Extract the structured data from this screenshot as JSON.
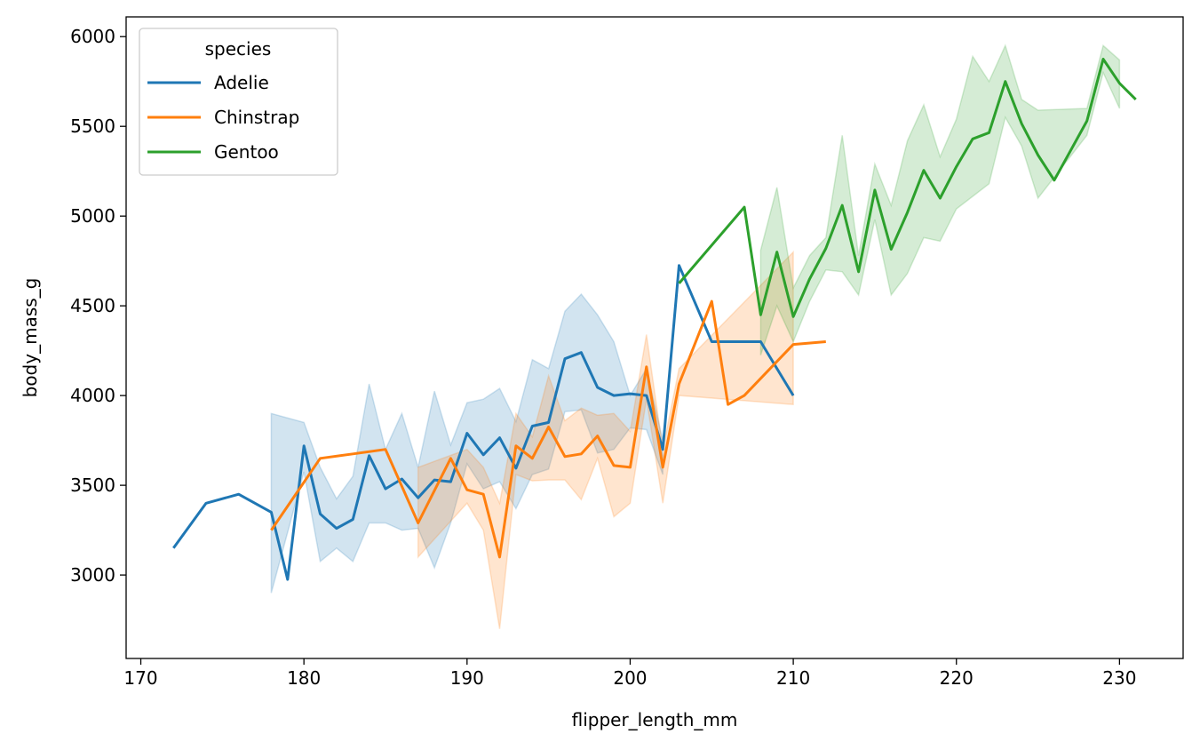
{
  "chart_data": {
    "type": "line",
    "xlabel": "flipper_length_mm",
    "ylabel": "body_mass_g",
    "xlim": [
      169.1,
      233.9
    ],
    "ylim": [
      2535,
      6110
    ],
    "xticks": [
      170,
      180,
      190,
      200,
      210,
      220,
      230
    ],
    "yticks": [
      3000,
      3500,
      4000,
      4500,
      5000,
      5500,
      6000
    ],
    "grid": false,
    "legend": {
      "title": "species",
      "placement": "top-left"
    },
    "series": [
      {
        "name": "Adelie",
        "color": "#1f77b4",
        "points": [
          [
            172,
            3150
          ],
          [
            174,
            3400
          ],
          [
            176,
            3450
          ],
          [
            178,
            3350
          ],
          [
            179,
            2975
          ],
          [
            180,
            3720
          ],
          [
            181,
            3340
          ],
          [
            182,
            3260
          ],
          [
            183,
            3310
          ],
          [
            184,
            3665
          ],
          [
            185,
            3480
          ],
          [
            186,
            3535
          ],
          [
            187,
            3430
          ],
          [
            188,
            3530
          ],
          [
            189,
            3520
          ],
          [
            190,
            3790
          ],
          [
            191,
            3670
          ],
          [
            192,
            3765
          ],
          [
            193,
            3595
          ],
          [
            194,
            3830
          ],
          [
            195,
            3850
          ],
          [
            196,
            4205
          ],
          [
            197,
            4240
          ],
          [
            198,
            4045
          ],
          [
            199,
            4000
          ],
          [
            200,
            4010
          ],
          [
            201,
            4000
          ],
          [
            202,
            3700
          ],
          [
            203,
            4725
          ],
          [
            205,
            4300
          ],
          [
            207,
            4300
          ],
          [
            208,
            4300
          ],
          [
            210,
            4000
          ]
        ],
        "band": [
          [
            178,
            2900,
            3900
          ],
          [
            180,
            3575,
            3850
          ],
          [
            181,
            3075,
            3600
          ],
          [
            182,
            3150,
            3425
          ],
          [
            183,
            3075,
            3550
          ],
          [
            184,
            3290,
            4065
          ],
          [
            185,
            3290,
            3700
          ],
          [
            186,
            3250,
            3900
          ],
          [
            187,
            3260,
            3600
          ],
          [
            188,
            3040,
            4025
          ],
          [
            189,
            3290,
            3725
          ],
          [
            190,
            3620,
            3960
          ],
          [
            191,
            3480,
            3980
          ],
          [
            192,
            3520,
            4040
          ],
          [
            193,
            3370,
            3855
          ],
          [
            194,
            3560,
            4200
          ],
          [
            195,
            3590,
            4150
          ],
          [
            196,
            3910,
            4470
          ],
          [
            197,
            3920,
            4565
          ],
          [
            198,
            3680,
            4450
          ],
          [
            199,
            3700,
            4300
          ],
          [
            200,
            3820,
            4000
          ],
          [
            201,
            3810,
            4150
          ],
          [
            202,
            3560,
            3750
          ]
        ]
      },
      {
        "name": "Chinstrap",
        "color": "#ff7f0e",
        "points": [
          [
            178,
            3250
          ],
          [
            181,
            3650
          ],
          [
            183,
            3675
          ],
          [
            185,
            3700
          ],
          [
            187,
            3290
          ],
          [
            189,
            3650
          ],
          [
            190,
            3475
          ],
          [
            191,
            3450
          ],
          [
            192,
            3100
          ],
          [
            193,
            3720
          ],
          [
            194,
            3650
          ],
          [
            195,
            3825
          ],
          [
            196,
            3660
          ],
          [
            197,
            3675
          ],
          [
            198,
            3775
          ],
          [
            199,
            3610
          ],
          [
            200,
            3600
          ],
          [
            201,
            4160
          ],
          [
            202,
            3600
          ],
          [
            203,
            4065
          ],
          [
            205,
            4525
          ],
          [
            206,
            3950
          ],
          [
            207,
            4000
          ],
          [
            210,
            4285
          ],
          [
            212,
            4300
          ]
        ],
        "band": [
          [
            187,
            3100,
            3600
          ],
          [
            190,
            3400,
            3700
          ],
          [
            191,
            3250,
            3600
          ],
          [
            192,
            2700,
            3400
          ],
          [
            193,
            3560,
            3900
          ],
          [
            194,
            3525,
            3770
          ],
          [
            195,
            3530,
            4110
          ],
          [
            196,
            3530,
            3860
          ],
          [
            197,
            3420,
            3930
          ],
          [
            198,
            3650,
            3890
          ],
          [
            199,
            3325,
            3900
          ],
          [
            200,
            3400,
            3800
          ],
          [
            201,
            3980,
            4340
          ],
          [
            202,
            3400,
            3700
          ],
          [
            203,
            4000,
            4150
          ],
          [
            210,
            3950,
            4800
          ]
        ]
      },
      {
        "name": "Gentoo",
        "color": "#2ca02c",
        "points": [
          [
            203,
            4625
          ],
          [
            207,
            5050
          ],
          [
            208,
            4450
          ],
          [
            209,
            4800
          ],
          [
            210,
            4440
          ],
          [
            211,
            4650
          ],
          [
            212,
            4820
          ],
          [
            213,
            5060
          ],
          [
            214,
            4690
          ],
          [
            215,
            5145
          ],
          [
            216,
            4815
          ],
          [
            217,
            5020
          ],
          [
            218,
            5255
          ],
          [
            219,
            5100
          ],
          [
            220,
            5275
          ],
          [
            221,
            5430
          ],
          [
            222,
            5465
          ],
          [
            223,
            5750
          ],
          [
            224,
            5515
          ],
          [
            225,
            5340
          ],
          [
            226,
            5200
          ],
          [
            228,
            5530
          ],
          [
            229,
            5875
          ],
          [
            230,
            5740
          ],
          [
            231,
            5650
          ]
        ],
        "band": [
          [
            208,
            4225,
            4810
          ],
          [
            209,
            4500,
            5160
          ],
          [
            210,
            4300,
            4600
          ],
          [
            211,
            4525,
            4780
          ],
          [
            212,
            4700,
            4880
          ],
          [
            213,
            4690,
            5450
          ],
          [
            214,
            4560,
            4780
          ],
          [
            215,
            4980,
            5290
          ],
          [
            216,
            4560,
            5060
          ],
          [
            217,
            4680,
            5420
          ],
          [
            218,
            4880,
            5620
          ],
          [
            219,
            4860,
            5330
          ],
          [
            220,
            5040,
            5540
          ],
          [
            221,
            5110,
            5890
          ],
          [
            222,
            5180,
            5750
          ],
          [
            223,
            5550,
            5950
          ],
          [
            224,
            5390,
            5650
          ],
          [
            225,
            5100,
            5590
          ],
          [
            228,
            5450,
            5600
          ],
          [
            229,
            5800,
            5950
          ],
          [
            230,
            5600,
            5870
          ]
        ]
      }
    ]
  }
}
